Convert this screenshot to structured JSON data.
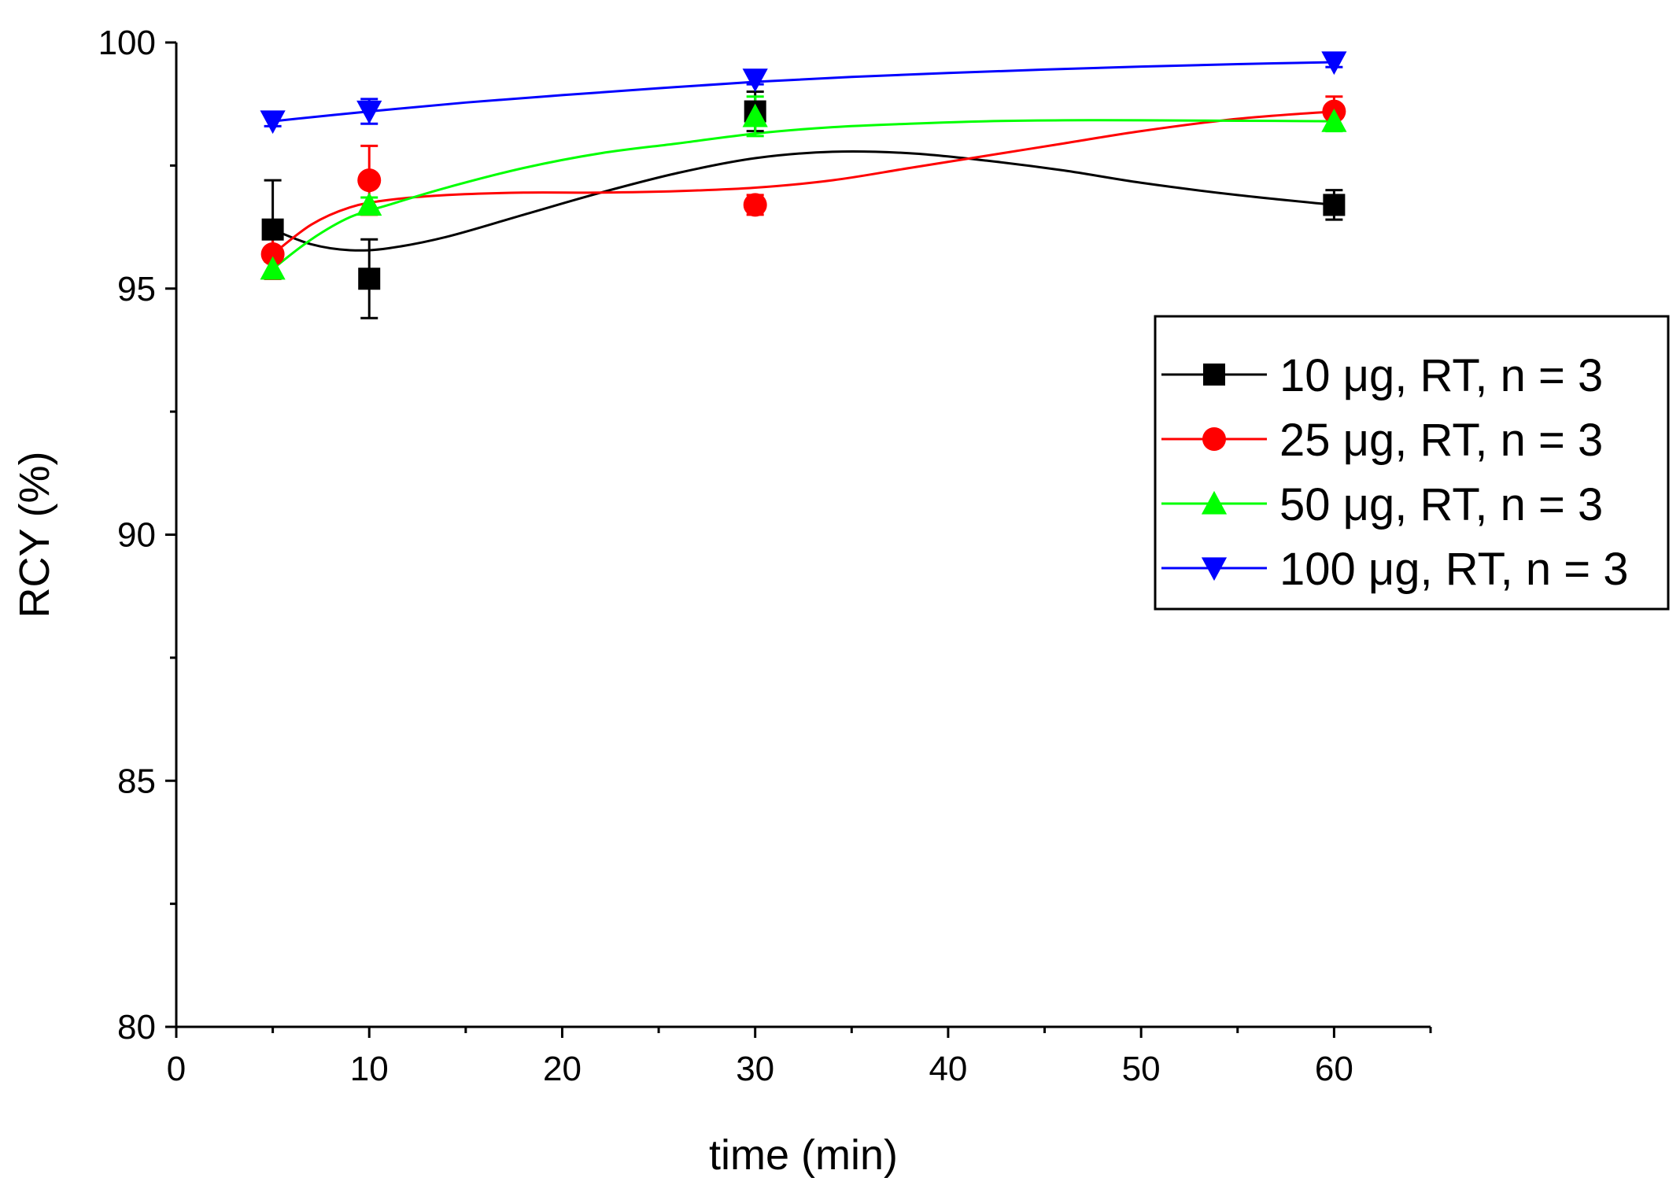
{
  "chart_data": {
    "type": "scatter",
    "title": "",
    "xlabel": "time (min)",
    "ylabel": "RCY (%)",
    "xlim": [
      0,
      65
    ],
    "ylim": [
      80,
      100
    ],
    "x_ticks": [
      0,
      10,
      20,
      30,
      40,
      50,
      60
    ],
    "x_tick_labels": [
      "0",
      "10",
      "20",
      "30",
      "40",
      "50",
      "60"
    ],
    "y_ticks": [
      80,
      85,
      90,
      95,
      100
    ],
    "y_tick_labels": [
      "80",
      "85",
      "90",
      "95",
      "100"
    ],
    "grid": false,
    "legend_position": "right",
    "series": [
      {
        "name": "10 μg, RT, n = 3",
        "color": "#000000",
        "marker": "square",
        "x": [
          5,
          10,
          30,
          60
        ],
        "y": [
          96.2,
          95.2,
          98.6,
          96.7
        ],
        "err": [
          1.0,
          0.8,
          0.4,
          0.3
        ],
        "fit_x": [
          5,
          7,
          9,
          11,
          14,
          18,
          22,
          26,
          30,
          34,
          38,
          42,
          46,
          50,
          55,
          60
        ],
        "fit_y": [
          96.2,
          95.9,
          95.78,
          95.82,
          96.05,
          96.5,
          96.95,
          97.35,
          97.65,
          97.78,
          97.75,
          97.6,
          97.4,
          97.15,
          96.9,
          96.7
        ]
      },
      {
        "name": "25 μg, RT, n = 3",
        "color": "#ff0000",
        "marker": "circle",
        "x": [
          5,
          10,
          30,
          60
        ],
        "y": [
          95.7,
          97.2,
          96.7,
          98.6
        ],
        "err": [
          0.5,
          0.7,
          0.2,
          0.3
        ],
        "fit_x": [
          5,
          7,
          9,
          11,
          14,
          18,
          22,
          26,
          30,
          34,
          38,
          42,
          46,
          50,
          55,
          60
        ],
        "fit_y": [
          95.7,
          96.3,
          96.65,
          96.8,
          96.9,
          96.95,
          96.95,
          96.98,
          97.05,
          97.2,
          97.45,
          97.7,
          97.95,
          98.2,
          98.45,
          98.6
        ]
      },
      {
        "name": "50 μg, RT, n = 3",
        "color": "#00ff00",
        "marker": "triangle-up",
        "x": [
          5,
          10,
          30,
          60
        ],
        "y": [
          95.4,
          96.7,
          98.5,
          98.4
        ],
        "err": [
          0.15,
          0.15,
          0.4,
          0.2
        ],
        "fit_x": [
          5,
          7,
          9,
          11,
          14,
          18,
          22,
          26,
          30,
          34,
          38,
          42,
          46,
          50,
          55,
          60
        ],
        "fit_y": [
          95.4,
          96.0,
          96.45,
          96.7,
          97.05,
          97.45,
          97.75,
          97.95,
          98.15,
          98.28,
          98.35,
          98.4,
          98.42,
          98.42,
          98.41,
          98.4
        ]
      },
      {
        "name": "100 μg, RT, n = 3",
        "color": "#0000ff",
        "marker": "triangle-down",
        "x": [
          5,
          10,
          30,
          60
        ],
        "y": [
          98.4,
          98.6,
          99.25,
          99.6
        ],
        "err": [
          0.1,
          0.25,
          0.1,
          0.1
        ],
        "fit_x": [
          5,
          10,
          15,
          20,
          25,
          30,
          35,
          40,
          45,
          50,
          55,
          60
        ],
        "fit_y": [
          98.4,
          98.6,
          98.78,
          98.93,
          99.07,
          99.2,
          99.3,
          99.38,
          99.45,
          99.51,
          99.56,
          99.6
        ]
      }
    ]
  }
}
